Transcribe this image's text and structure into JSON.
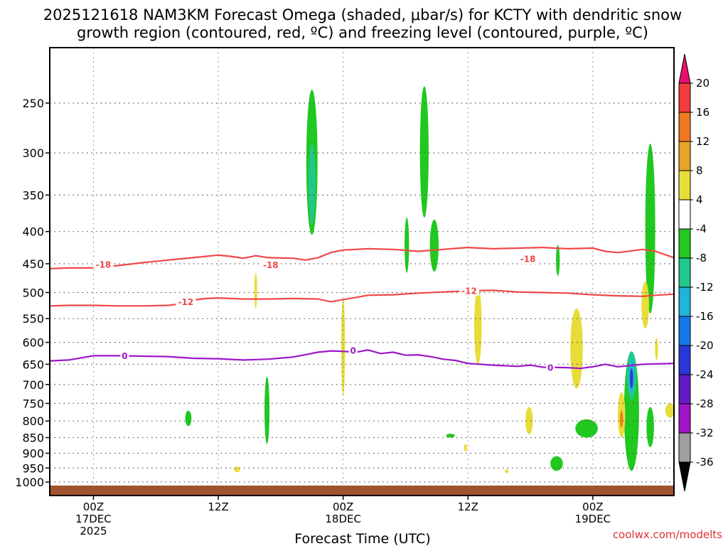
{
  "chart_data": {
    "type": "area",
    "title_line1": "2025121618 NAM3KM Forecast Omega (shaded, μbar/s) for KCTY with dendritic snow",
    "title_line2": "growth region (contoured, red, ºC) and freezing level (contoured, purple, ºC)",
    "xlabel": "Forecast Time (UTC)",
    "credit": "coolwx.com/modelts",
    "y_ticks": [
      250,
      300,
      350,
      400,
      450,
      500,
      550,
      600,
      650,
      700,
      750,
      800,
      850,
      900,
      950,
      1000
    ],
    "y_label_texts": [
      "250",
      "300",
      "350",
      "400",
      "450",
      "500",
      "550",
      "600",
      "650",
      "700",
      "750",
      "800",
      "850",
      "900",
      "950",
      "1000"
    ],
    "ylim_hpa": [
      1030,
      200
    ],
    "xlim_hours": [
      -3.5,
      46.5
    ],
    "x_ticks": [
      {
        "hour": 0,
        "lines": [
          "00Z",
          "17DEC",
          "2025"
        ]
      },
      {
        "hour": 10,
        "lines": [
          "12Z"
        ]
      },
      {
        "hour": 20,
        "lines": [
          "00Z",
          "18DEC"
        ]
      },
      {
        "hour": 30,
        "lines": [
          "12Z"
        ]
      },
      {
        "hour": 40,
        "lines": [
          "00Z",
          "19DEC"
        ]
      }
    ],
    "colorbar": {
      "labels": [
        "20",
        "16",
        "12",
        "8",
        "4",
        "-4",
        "-8",
        "-12",
        "-16",
        "-20",
        "-24",
        "-28",
        "-32",
        "-36"
      ],
      "colors": [
        "#e8106c",
        "#f03c3c",
        "#f07820",
        "#e8a428",
        "#e8dc38",
        "#ffffff",
        "#20c820",
        "#20c88c",
        "#20b4d8",
        "#1478e8",
        "#2838d8",
        "#6418c8",
        "#a014c8",
        "#a0a0a0",
        "#000000"
      ]
    },
    "surface_color": "#a0522d",
    "contours": [
      {
        "name": "-18C dendritic top",
        "color": "#f04848",
        "label": "-18",
        "label_positions": [
          [
            0.8,
            451
          ],
          [
            14.2,
            452
          ],
          [
            34.8,
            442
          ]
        ],
        "points": [
          [
            -3.5,
            458
          ],
          [
            -2,
            457
          ],
          [
            0,
            457
          ],
          [
            2,
            453
          ],
          [
            4,
            448
          ],
          [
            6,
            444
          ],
          [
            8,
            440
          ],
          [
            10,
            436
          ],
          [
            11,
            438
          ],
          [
            12,
            441
          ],
          [
            13,
            437
          ],
          [
            14,
            440
          ],
          [
            16,
            441
          ],
          [
            17,
            444
          ],
          [
            18,
            440
          ],
          [
            19,
            432
          ],
          [
            20,
            428
          ],
          [
            22,
            426
          ],
          [
            24,
            427
          ],
          [
            26,
            430
          ],
          [
            28,
            427
          ],
          [
            30,
            424
          ],
          [
            32,
            426
          ],
          [
            34,
            425
          ],
          [
            36,
            424
          ],
          [
            38,
            426
          ],
          [
            40,
            425
          ],
          [
            41,
            430
          ],
          [
            42,
            432
          ],
          [
            44,
            427
          ],
          [
            45,
            430
          ],
          [
            46.5,
            440
          ]
        ]
      },
      {
        "name": "-12C dendritic bottom",
        "color": "#f04848",
        "label": "-12",
        "label_positions": [
          [
            7.4,
            517
          ],
          [
            30.1,
            497
          ]
        ],
        "points": [
          [
            -3.5,
            525
          ],
          [
            -2,
            524
          ],
          [
            0,
            524
          ],
          [
            2,
            525
          ],
          [
            4,
            525
          ],
          [
            6,
            524
          ],
          [
            7,
            521
          ],
          [
            8,
            514
          ],
          [
            9,
            511
          ],
          [
            10,
            510
          ],
          [
            12,
            512
          ],
          [
            14,
            512
          ],
          [
            16,
            511
          ],
          [
            18,
            512
          ],
          [
            19,
            517
          ],
          [
            20,
            513
          ],
          [
            21,
            509
          ],
          [
            22,
            505
          ],
          [
            24,
            504
          ],
          [
            26,
            501
          ],
          [
            28,
            499
          ],
          [
            30,
            497
          ],
          [
            32,
            496
          ],
          [
            34,
            499
          ],
          [
            36,
            500
          ],
          [
            38,
            501
          ],
          [
            40,
            504
          ],
          [
            42,
            506
          ],
          [
            44,
            507
          ],
          [
            45,
            505
          ],
          [
            46.5,
            503
          ]
        ]
      },
      {
        "name": "0C freezing level",
        "color": "#9c18c8",
        "label": "0",
        "label_positions": [
          [
            2.5,
            630
          ],
          [
            20.8,
            618
          ],
          [
            36.6,
            658
          ]
        ],
        "points": [
          [
            -3.5,
            642
          ],
          [
            -2,
            640
          ],
          [
            0,
            630
          ],
          [
            2,
            630
          ],
          [
            4,
            631
          ],
          [
            6,
            632
          ],
          [
            8,
            636
          ],
          [
            10,
            637
          ],
          [
            12,
            640
          ],
          [
            14,
            638
          ],
          [
            16,
            633
          ],
          [
            18,
            622
          ],
          [
            19,
            619
          ],
          [
            20,
            620
          ],
          [
            21,
            622
          ],
          [
            22,
            617
          ],
          [
            23,
            625
          ],
          [
            24,
            622
          ],
          [
            25,
            629
          ],
          [
            26,
            628
          ],
          [
            27,
            632
          ],
          [
            28,
            638
          ],
          [
            29,
            641
          ],
          [
            30,
            648
          ],
          [
            32,
            652
          ],
          [
            34,
            655
          ],
          [
            35,
            652
          ],
          [
            36,
            657
          ],
          [
            38,
            658
          ],
          [
            39,
            660
          ],
          [
            40,
            656
          ],
          [
            41,
            650
          ],
          [
            42,
            656
          ],
          [
            44,
            650
          ],
          [
            46.5,
            648
          ]
        ]
      }
    ],
    "omega_regions": [
      {
        "color": "#20c820",
        "cx": 17.5,
        "p1": 238,
        "p2": 405,
        "halfw": 0.45
      },
      {
        "color": "#20c88c",
        "cx": 17.5,
        "p1": 290,
        "p2": 390,
        "halfw": 0.28
      },
      {
        "color": "#20c820",
        "cx": 26.5,
        "p1": 235,
        "p2": 380,
        "halfw": 0.35
      },
      {
        "color": "#20c820",
        "cx": 25.1,
        "p1": 380,
        "p2": 465,
        "halfw": 0.18
      },
      {
        "color": "#20c820",
        "cx": 27.3,
        "p1": 383,
        "p2": 463,
        "halfw": 0.35
      },
      {
        "color": "#20c820",
        "cx": 44.6,
        "p1": 290,
        "p2": 540,
        "halfw": 0.4
      },
      {
        "color": "#20c820",
        "cx": 37.2,
        "p1": 420,
        "p2": 470,
        "halfw": 0.15
      },
      {
        "color": "#20c820",
        "cx": 7.6,
        "p1": 770,
        "p2": 815,
        "halfw": 0.25
      },
      {
        "color": "#20c820",
        "cx": 13.9,
        "p1": 680,
        "p2": 870,
        "halfw": 0.2
      },
      {
        "color": "#20c820",
        "cx": 43.1,
        "p1": 620,
        "p2": 960,
        "halfw": 0.6
      },
      {
        "color": "#20c88c",
        "cx": 43.1,
        "p1": 620,
        "p2": 740,
        "halfw": 0.4
      },
      {
        "color": "#20b4d8",
        "cx": 43.1,
        "p1": 640,
        "p2": 720,
        "halfw": 0.25
      },
      {
        "color": "#2838d8",
        "cx": 43.1,
        "p1": 660,
        "p2": 710,
        "halfw": 0.12
      },
      {
        "color": "#20c820",
        "cx": 39.5,
        "p1": 795,
        "p2": 850,
        "halfw": 0.9
      },
      {
        "color": "#20c820",
        "cx": 44.6,
        "p1": 760,
        "p2": 880,
        "halfw": 0.3
      },
      {
        "color": "#20c820",
        "cx": 37.1,
        "p1": 910,
        "p2": 960,
        "halfw": 0.5
      },
      {
        "color": "#20c820",
        "cx": 28.6,
        "p1": 838,
        "p2": 850,
        "halfw": 0.35
      },
      {
        "color": "#e8dc38",
        "cx": 13.0,
        "p1": 465,
        "p2": 530,
        "halfw": 0.1
      },
      {
        "color": "#e8dc38",
        "cx": 20.0,
        "p1": 510,
        "p2": 730,
        "halfw": 0.15
      },
      {
        "color": "#e8dc38",
        "cx": 30.8,
        "p1": 490,
        "p2": 650,
        "halfw": 0.3
      },
      {
        "color": "#e8dc38",
        "cx": 38.7,
        "p1": 530,
        "p2": 710,
        "halfw": 0.5
      },
      {
        "color": "#e8dc38",
        "cx": 44.2,
        "p1": 480,
        "p2": 570,
        "halfw": 0.3
      },
      {
        "color": "#e8dc38",
        "cx": 45.1,
        "p1": 590,
        "p2": 640,
        "halfw": 0.12
      },
      {
        "color": "#e8dc38",
        "cx": 34.9,
        "p1": 760,
        "p2": 840,
        "halfw": 0.3
      },
      {
        "color": "#e8dc38",
        "cx": 42.3,
        "p1": 720,
        "p2": 850,
        "halfw": 0.3
      },
      {
        "color": "#e8dc38",
        "cx": 11.5,
        "p1": 945,
        "p2": 965,
        "halfw": 0.25
      },
      {
        "color": "#e8dc38",
        "cx": 33.1,
        "p1": 955,
        "p2": 968,
        "halfw": 0.15
      },
      {
        "color": "#e8dc38",
        "cx": 29.8,
        "p1": 870,
        "p2": 895,
        "halfw": 0.1
      },
      {
        "color": "#e8dc38",
        "cx": 46.2,
        "p1": 750,
        "p2": 790,
        "halfw": 0.4
      },
      {
        "color": "#f07820",
        "cx": 42.3,
        "p1": 770,
        "p2": 820,
        "halfw": 0.12
      }
    ]
  }
}
